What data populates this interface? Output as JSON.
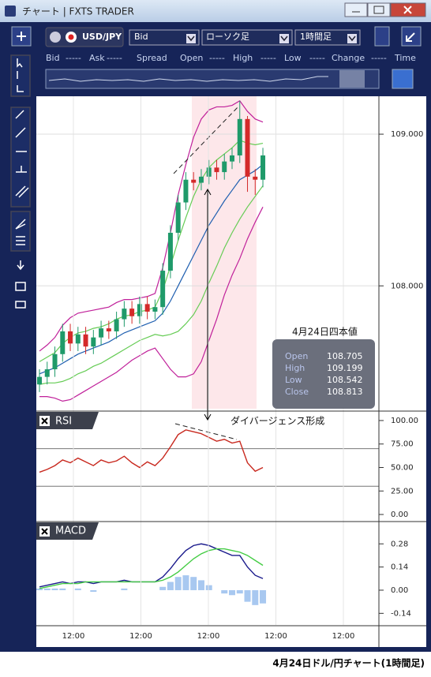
{
  "window": {
    "title": "チャート | FXTS TRADER"
  },
  "toolbar": {
    "symbol": "USD/JPY",
    "price_side": "Bid",
    "chart_style": "ローソク足",
    "timeframe": "1時間足"
  },
  "quote_header": [
    "Bid",
    "-----",
    "Ask",
    "-----",
    "Spread",
    "Open",
    "-----",
    "High",
    "-----",
    "Low",
    "-----",
    "Change",
    "-----",
    "Time"
  ],
  "chart_data": [
    {
      "type": "candlestick",
      "open": [
        107.35,
        107.4,
        107.45,
        107.55,
        107.7,
        107.62,
        107.68,
        107.6,
        107.66,
        107.72,
        107.7,
        107.78,
        107.85,
        107.8,
        107.88,
        107.83,
        107.86,
        108.1,
        108.35,
        108.55,
        108.7,
        108.68,
        108.72,
        108.78,
        108.75,
        108.82,
        108.86,
        109.1,
        108.72,
        108.7
      ],
      "high": [
        107.45,
        107.5,
        107.6,
        107.75,
        107.75,
        107.73,
        107.73,
        107.71,
        107.77,
        107.77,
        107.83,
        107.9,
        107.9,
        107.93,
        107.93,
        107.91,
        108.15,
        108.4,
        108.6,
        108.75,
        108.75,
        108.77,
        108.83,
        108.83,
        108.87,
        108.91,
        109.22,
        109.12,
        108.77,
        108.91
      ],
      "low": [
        107.3,
        107.35,
        107.4,
        107.5,
        107.57,
        107.57,
        107.55,
        107.55,
        107.61,
        107.65,
        107.65,
        107.73,
        107.75,
        107.75,
        107.78,
        107.78,
        107.81,
        108.05,
        108.3,
        108.5,
        108.63,
        108.63,
        108.67,
        108.7,
        108.7,
        108.77,
        108.81,
        108.62,
        108.6,
        108.65
      ],
      "close": [
        107.4,
        107.45,
        107.55,
        107.7,
        107.62,
        107.68,
        107.6,
        107.66,
        107.72,
        107.7,
        107.78,
        107.85,
        107.8,
        107.88,
        107.83,
        107.86,
        108.1,
        108.35,
        108.55,
        108.7,
        108.68,
        108.72,
        108.78,
        108.75,
        108.82,
        108.86,
        109.1,
        108.72,
        108.7,
        108.86
      ],
      "up_color": "#1f9a6a",
      "down_color": "#d42a2a",
      "bands": [
        {
          "color": "#c0209a",
          "values": [
            107.57,
            107.61,
            107.66,
            107.74,
            107.79,
            107.82,
            107.83,
            107.84,
            107.85,
            107.86,
            107.89,
            107.91,
            107.91,
            107.92,
            107.93,
            107.95,
            108.12,
            108.35,
            108.6,
            108.8,
            108.98,
            109.1,
            109.16,
            109.18,
            109.18,
            109.19,
            109.22,
            109.15,
            109.1,
            109.08
          ]
        },
        {
          "color": "#66cc55",
          "values": [
            107.5,
            107.53,
            107.56,
            107.62,
            107.66,
            107.69,
            107.7,
            107.72,
            107.73,
            107.75,
            107.78,
            107.8,
            107.81,
            107.83,
            107.84,
            107.86,
            107.97,
            108.13,
            108.3,
            108.45,
            108.59,
            108.7,
            108.78,
            108.83,
            108.87,
            108.91,
            108.96,
            108.94,
            108.93,
            108.94
          ]
        },
        {
          "color": "#1f5fb0",
          "values": [
            107.42,
            107.44,
            107.46,
            107.49,
            107.52,
            107.55,
            107.57,
            107.59,
            107.61,
            107.63,
            107.66,
            107.69,
            107.71,
            107.73,
            107.75,
            107.77,
            107.82,
            107.9,
            108.0,
            108.1,
            108.2,
            108.3,
            108.4,
            108.48,
            108.56,
            108.63,
            108.7,
            108.73,
            108.76,
            108.8
          ]
        },
        {
          "color": "#66cc55",
          "values": [
            107.35,
            107.36,
            107.36,
            107.37,
            107.39,
            107.42,
            107.44,
            107.47,
            107.49,
            107.52,
            107.55,
            107.58,
            107.61,
            107.64,
            107.66,
            107.68,
            107.67,
            107.68,
            107.7,
            107.75,
            107.81,
            107.9,
            108.02,
            108.13,
            108.25,
            108.35,
            108.44,
            108.52,
            108.59,
            108.66
          ]
        },
        {
          "color": "#c0209a",
          "values": [
            107.27,
            107.27,
            107.26,
            107.24,
            107.25,
            107.28,
            107.31,
            107.34,
            107.37,
            107.4,
            107.43,
            107.47,
            107.51,
            107.54,
            107.57,
            107.59,
            107.52,
            107.45,
            107.4,
            107.4,
            107.42,
            107.5,
            107.64,
            107.78,
            107.94,
            108.07,
            108.18,
            108.31,
            108.42,
            108.52
          ]
        }
      ],
      "ylim": [
        107.19,
        109.25
      ],
      "yticks": [
        {
          "value": 109,
          "label": "109.000"
        },
        {
          "value": 108,
          "label": "108.000"
        }
      ],
      "grid": true
    },
    {
      "type": "line",
      "title": "RSI",
      "series": [
        {
          "color": "#c8281e",
          "values": [
            45,
            48,
            52,
            58,
            55,
            60,
            56,
            52,
            58,
            55,
            57,
            62,
            55,
            50,
            56,
            52,
            60,
            72,
            85,
            90,
            88,
            86,
            82,
            78,
            80,
            76,
            78,
            55,
            46,
            50
          ]
        }
      ],
      "levels": [
        70,
        30
      ],
      "ylim": [
        -6.7,
        109.2
      ],
      "yticks": [
        {
          "value": 100,
          "label": "100.00"
        },
        {
          "value": 75,
          "label": "75.00"
        },
        {
          "value": 50,
          "label": "50.00"
        },
        {
          "value": 25,
          "label": "25.00"
        },
        {
          "value": 0,
          "label": "0.00"
        }
      ]
    },
    {
      "type": "line",
      "title": "MACD",
      "series": [
        {
          "color": "#1a1a8c",
          "values": [
            0.02,
            0.03,
            0.04,
            0.05,
            0.04,
            0.05,
            0.05,
            0.04,
            0.05,
            0.05,
            0.05,
            0.06,
            0.05,
            0.05,
            0.05,
            0.05,
            0.08,
            0.13,
            0.19,
            0.24,
            0.27,
            0.28,
            0.27,
            0.25,
            0.23,
            0.21,
            0.21,
            0.14,
            0.09,
            0.07
          ]
        },
        {
          "color": "#44cc44",
          "values": [
            0.01,
            0.02,
            0.03,
            0.04,
            0.04,
            0.04,
            0.05,
            0.05,
            0.05,
            0.05,
            0.05,
            0.05,
            0.05,
            0.05,
            0.05,
            0.05,
            0.06,
            0.08,
            0.11,
            0.15,
            0.19,
            0.22,
            0.24,
            0.25,
            0.25,
            0.24,
            0.23,
            0.21,
            0.18,
            0.15
          ]
        }
      ],
      "histogram": {
        "color": "#a8c8f0",
        "values": [
          0.01,
          0.01,
          0.01,
          0.01,
          0,
          0.01,
          0,
          -0.01,
          0,
          0,
          0,
          0.01,
          0,
          0,
          0,
          0,
          0.02,
          0.05,
          0.08,
          0.09,
          0.08,
          0.06,
          0.03,
          0,
          -0.02,
          -0.03,
          -0.02,
          -0.07,
          -0.09,
          -0.08
        ]
      },
      "ylim": [
        -0.21,
        0.41
      ],
      "yticks": [
        0.28,
        0.14,
        {
          "value": 0,
          "label": "0.00"
        },
        -0.14
      ]
    }
  ],
  "time_axis": [
    "12:00",
    "12:00",
    "12:00",
    "12:00",
    "12:00"
  ],
  "quote_box": {
    "title": "4月24日四本値",
    "rows": [
      [
        "Open",
        "108.705"
      ],
      [
        "High",
        "109.199"
      ],
      [
        "Low",
        "108.542"
      ],
      [
        "Close",
        "108.813"
      ]
    ]
  },
  "annotation": "ダイバージェンス形成",
  "caption": "4月24日ドル/円チャート(1時間足)"
}
